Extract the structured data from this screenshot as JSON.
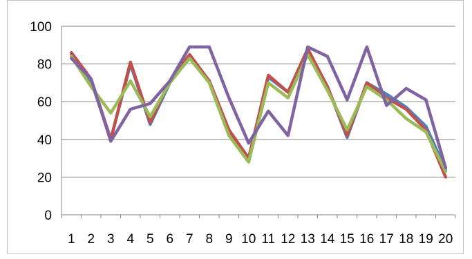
{
  "chart_data": {
    "type": "line",
    "title": "",
    "xlabel": "",
    "ylabel": "",
    "x": [
      "1",
      "2",
      "3",
      "4",
      "5",
      "6",
      "7",
      "8",
      "9",
      "10",
      "11",
      "12",
      "13",
      "14",
      "15",
      "16",
      "17",
      "18",
      "19",
      "20"
    ],
    "ylim": [
      0,
      100
    ],
    "yticks": [
      0,
      20,
      40,
      60,
      80,
      100
    ],
    "grid": "horizontal",
    "legend": "none",
    "series": [
      {
        "color": "#4f81bd",
        "values": [
          85,
          71,
          40,
          80,
          48,
          70,
          84,
          71,
          44,
          30,
          73,
          65,
          87,
          68,
          41,
          70,
          64,
          57,
          47,
          24
        ]
      },
      {
        "color": "#c0504d",
        "values": [
          86,
          72,
          40,
          81,
          49,
          71,
          85,
          71,
          45,
          30,
          74,
          65,
          88,
          68,
          42,
          70,
          62,
          56,
          45,
          20
        ]
      },
      {
        "color": "#9bbb59",
        "values": [
          84,
          68,
          54,
          71,
          52,
          70,
          83,
          70,
          42,
          28,
          70,
          62,
          85,
          66,
          45,
          68,
          61,
          51,
          44,
          23
        ]
      },
      {
        "color": "#8064a2",
        "values": [
          83,
          72,
          39,
          56,
          59,
          71,
          89,
          89,
          62,
          38,
          55,
          42,
          89,
          84,
          61,
          89,
          58,
          67,
          61,
          25
        ]
      }
    ]
  }
}
